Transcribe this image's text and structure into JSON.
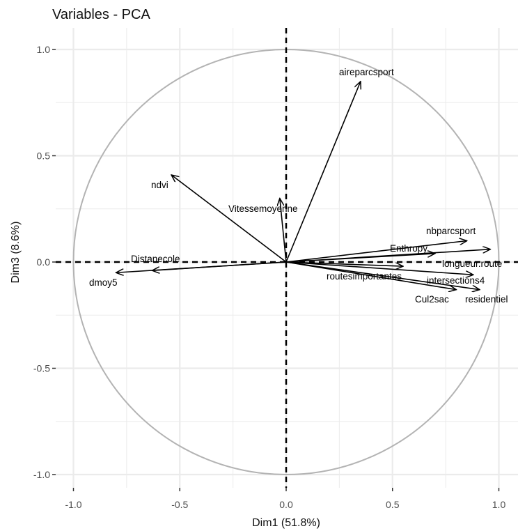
{
  "chart_data": {
    "type": "scatter",
    "title": "Variables - PCA",
    "xlabel": "Dim1 (51.8%)",
    "ylabel": "Dim3 (8.6%)",
    "xlim": [
      -1.0,
      1.0
    ],
    "ylim": [
      -1.0,
      1.0
    ],
    "x_ticks": [
      "-1.0",
      "-0.5",
      "0.0",
      "0.5",
      "1.0"
    ],
    "y_ticks": [
      "1.0",
      "0.5",
      "0.0",
      "-0.5",
      "-1.0"
    ],
    "grid": true,
    "unit_circle": true,
    "colors": {
      "circle": "#b3b3b3",
      "arrow": "#000000",
      "grid": "#ebebeb",
      "zero_lines": "#000000"
    },
    "variables": [
      {
        "name": "aireparcsport",
        "x": 0.35,
        "y": 0.85
      },
      {
        "name": "ndvi",
        "x": -0.54,
        "y": 0.41
      },
      {
        "name": "Vitessemoyenne",
        "x": -0.03,
        "y": 0.3
      },
      {
        "name": "nbparcsport",
        "x": 0.85,
        "y": 0.1
      },
      {
        "name": "Enthropy",
        "x": 0.7,
        "y": 0.04
      },
      {
        "name": "longueur.route",
        "x": 0.96,
        "y": 0.06
      },
      {
        "name": "routesimportantes",
        "x": 0.55,
        "y": -0.02
      },
      {
        "name": "intersections4",
        "x": 0.88,
        "y": -0.06
      },
      {
        "name": "Cul2sac",
        "x": 0.8,
        "y": -0.13
      },
      {
        "name": "residentiel",
        "x": 0.91,
        "y": -0.13
      },
      {
        "name": "Distanecole",
        "x": -0.63,
        "y": -0.04
      },
      {
        "name": "dmoy5",
        "x": -0.8,
        "y": -0.05
      }
    ]
  }
}
